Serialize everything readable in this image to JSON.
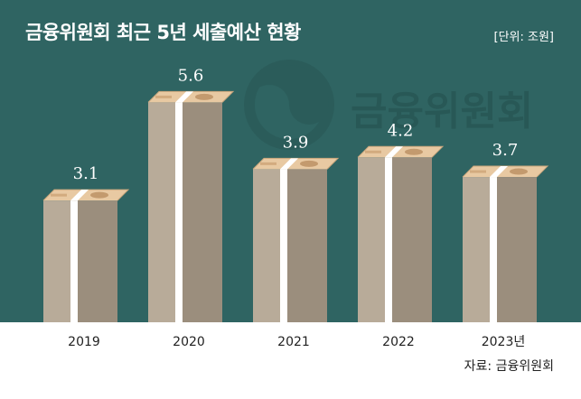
{
  "header": {
    "title": "금융위원회 최근 5년 세출예산 현황",
    "unit": "[단위: 조원]"
  },
  "watermark": {
    "text": "금융위원회"
  },
  "source": {
    "label": "자료:",
    "value": "금융위원회"
  },
  "colors": {
    "background": "#2f6462",
    "bar_front": "#b8ab99",
    "bar_side": "#9b8e7d",
    "bar_top": "#e8c9a2",
    "band": "#ffffff",
    "axis_panel": "#ffffff",
    "label_text": "#ffffff"
  },
  "chart_data": {
    "type": "bar",
    "title": "금융위원회 최근 5년 세출예산 현황",
    "unit": "[단위: 조원]",
    "categories": [
      "2019",
      "2020",
      "2021",
      "2022",
      "2023년"
    ],
    "values": [
      3.1,
      5.6,
      3.9,
      4.2,
      3.7
    ],
    "value_labels": [
      "3.1",
      "5.6",
      "3.9",
      "4.2",
      "3.7"
    ],
    "ylim": [
      0,
      6
    ],
    "grid": false,
    "legend": "none"
  }
}
